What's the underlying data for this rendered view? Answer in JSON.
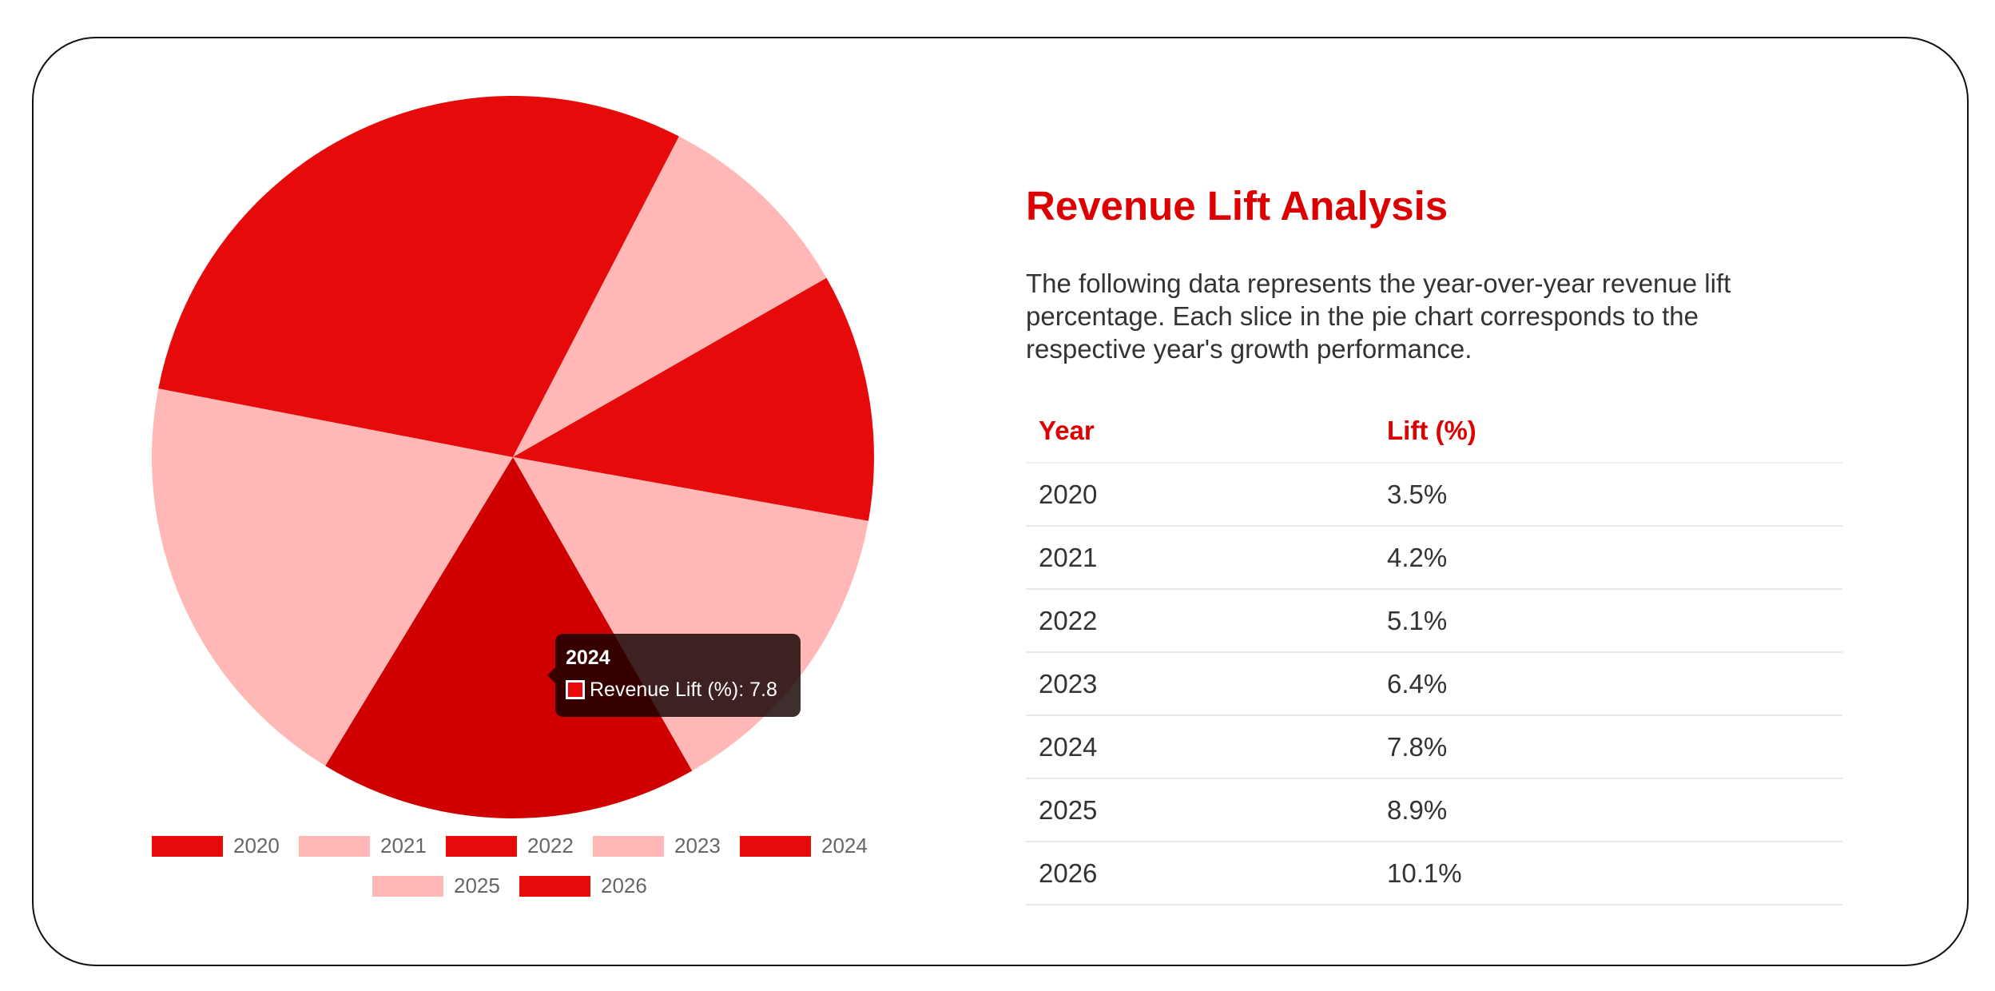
{
  "title": "Revenue Lift Analysis",
  "description": "The following data represents the year-over-year revenue lift percentage. Each slice in the pie chart corresponds to the respective year's growth performance.",
  "table": {
    "headers": [
      "Year",
      "Lift (%)"
    ],
    "rows": [
      [
        "2020",
        "3.5%"
      ],
      [
        "2021",
        "4.2%"
      ],
      [
        "2022",
        "5.1%"
      ],
      [
        "2023",
        "6.4%"
      ],
      [
        "2024",
        "7.8%"
      ],
      [
        "2025",
        "8.9%"
      ],
      [
        "2026",
        "10.1%"
      ]
    ]
  },
  "chart_data": {
    "type": "pie",
    "categories": [
      "2020",
      "2021",
      "2022",
      "2023",
      "2024",
      "2025",
      "2026"
    ],
    "series": [
      {
        "name": "Revenue Lift (%)",
        "values": [
          3.5,
          4.2,
          5.1,
          6.4,
          7.8,
          8.9,
          10.1
        ],
        "colors": [
          "#e60a0a",
          "#ffb8b5",
          "#e60a0a",
          "#ffb8b5",
          "#e60a0a",
          "#ffb8b5",
          "#e60a0a"
        ]
      }
    ],
    "legend": "bottom"
  }
}
